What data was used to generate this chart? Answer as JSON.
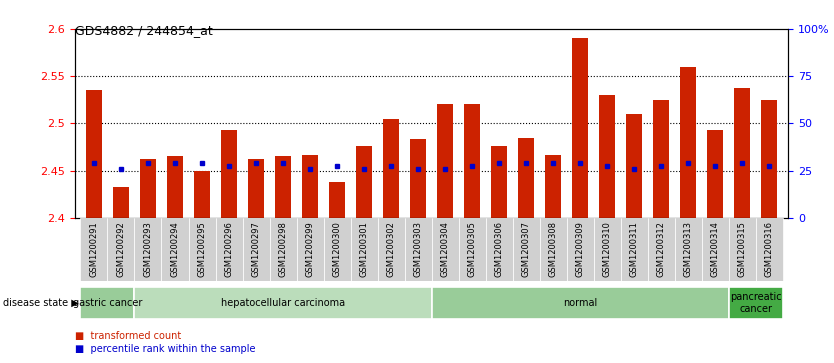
{
  "title": "GDS4882 / 244854_at",
  "samples": [
    "GSM1200291",
    "GSM1200292",
    "GSM1200293",
    "GSM1200294",
    "GSM1200295",
    "GSM1200296",
    "GSM1200297",
    "GSM1200298",
    "GSM1200299",
    "GSM1200300",
    "GSM1200301",
    "GSM1200302",
    "GSM1200303",
    "GSM1200304",
    "GSM1200305",
    "GSM1200306",
    "GSM1200307",
    "GSM1200308",
    "GSM1200309",
    "GSM1200310",
    "GSM1200311",
    "GSM1200312",
    "GSM1200313",
    "GSM1200314",
    "GSM1200315",
    "GSM1200316"
  ],
  "bar_values": [
    2.535,
    2.433,
    2.462,
    2.465,
    2.45,
    2.493,
    2.462,
    2.465,
    2.467,
    2.438,
    2.476,
    2.505,
    2.484,
    2.521,
    2.521,
    2.476,
    2.485,
    2.467,
    2.591,
    2.53,
    2.51,
    2.525,
    2.56,
    2.493,
    2.537,
    2.525
  ],
  "percentile_values": [
    2.458,
    2.452,
    2.458,
    2.458,
    2.458,
    2.455,
    2.458,
    2.458,
    2.452,
    2.455,
    2.452,
    2.455,
    2.452,
    2.452,
    2.455,
    2.458,
    2.458,
    2.458,
    2.458,
    2.455,
    2.452,
    2.455,
    2.458,
    2.455,
    2.458,
    2.455
  ],
  "ylim": [
    2.4,
    2.6
  ],
  "yticks_left": [
    2.4,
    2.45,
    2.5,
    2.55,
    2.6
  ],
  "ytick_labels_left": [
    "2.4",
    "2.45",
    "2.5",
    "2.55",
    "2.6"
  ],
  "yticks_right": [
    0,
    25,
    50,
    75,
    100
  ],
  "ytick_labels_right": [
    "0",
    "25",
    "50",
    "75",
    "100%"
  ],
  "hlines": [
    2.45,
    2.5,
    2.55
  ],
  "bar_color": "#cc2200",
  "dot_color": "#0000cc",
  "disease_groups": [
    {
      "label": "gastric cancer",
      "start": 0,
      "end": 2,
      "color": "#99cc99"
    },
    {
      "label": "hepatocellular carcinoma",
      "start": 2,
      "end": 13,
      "color": "#bbddbb"
    },
    {
      "label": "normal",
      "start": 13,
      "end": 24,
      "color": "#99cc99"
    },
    {
      "label": "pancreatic\ncancer",
      "start": 24,
      "end": 26,
      "color": "#44aa44"
    }
  ],
  "legend_label_red": "transformed count",
  "legend_label_blue": "percentile rank within the sample",
  "legend_color_red": "#cc2200",
  "legend_color_blue": "#0000cc",
  "disease_state_label": "disease state",
  "bar_width": 0.6
}
